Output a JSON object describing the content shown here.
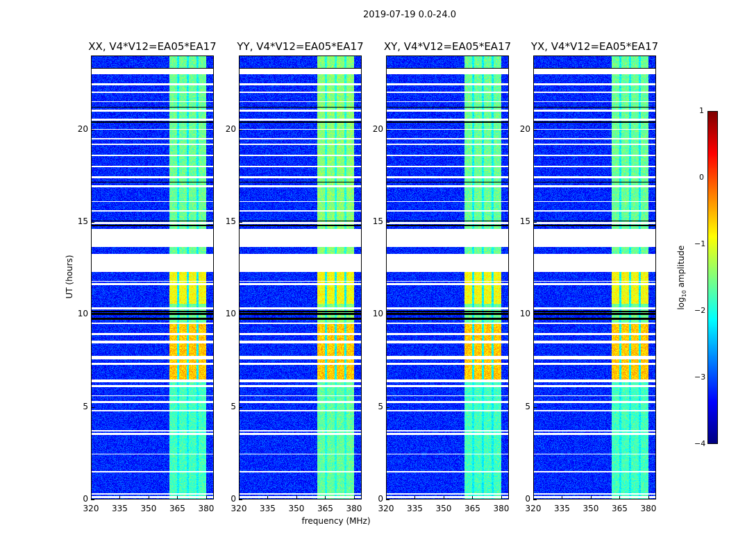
{
  "chart_data": {
    "type": "heatmap",
    "title": "2019-07-19 0.0-24.0",
    "xlabel": "frequency (MHz)",
    "ylabel": "UT (hours)",
    "xlim": [
      320,
      384
    ],
    "ylim": [
      0,
      24
    ],
    "xticks": [
      "320",
      "335",
      "350",
      "365",
      "380"
    ],
    "yticks": [
      "0",
      "5",
      "10",
      "15",
      "20"
    ],
    "panels": [
      {
        "title": "XX, V4*V12=EA05*EA17"
      },
      {
        "title": "YY, V4*V12=EA05*EA17"
      },
      {
        "title": "XY, V4*V12=EA05*EA17"
      },
      {
        "title": "YX, V4*V12=EA05*EA17"
      }
    ],
    "colorbar": {
      "label_prefix": "log",
      "label_sub": "10",
      "label_suffix": " amplitude",
      "range": [
        -4,
        1
      ],
      "ticks": [
        "1",
        "0",
        "−1",
        "−2",
        "−3",
        "−4"
      ],
      "colormap": "jet"
    },
    "background_log_amplitude": -3.2,
    "rfi_band_mhz": [
      360.5,
      380
    ],
    "band_gaps_mhz": [
      365.2,
      370.2,
      375.2
    ],
    "band_levels": [
      {
        "hours": [
          0,
          6.5
        ],
        "log_amplitude": -1.8
      },
      {
        "hours": [
          6.5,
          9.6
        ],
        "log_amplitude": -0.6
      },
      {
        "hours": [
          10.6,
          12.3
        ],
        "log_amplitude": -0.9
      },
      {
        "hours": [
          12.3,
          24
        ],
        "log_amplitude": -1.6
      }
    ],
    "flagged_hours": [
      [
        0.1,
        0.2
      ],
      [
        0.3,
        0.35
      ],
      [
        1.5,
        1.55
      ],
      [
        2.45,
        2.5
      ],
      [
        3.5,
        3.6
      ],
      [
        3.7,
        3.75
      ],
      [
        4.8,
        4.85
      ],
      [
        5.25,
        5.35
      ],
      [
        5.6,
        5.65
      ],
      [
        6.1,
        6.2
      ],
      [
        6.35,
        6.5
      ],
      [
        7.3,
        7.4
      ],
      [
        7.6,
        7.8
      ],
      [
        8.45,
        8.6
      ],
      [
        8.9,
        9.0
      ],
      [
        9.5,
        9.6
      ],
      [
        10.3,
        10.4
      ],
      [
        11.6,
        11.7
      ],
      [
        11.8,
        11.85
      ],
      [
        12.3,
        13.3
      ],
      [
        13.65,
        14.65
      ],
      [
        14.9,
        15.0
      ],
      [
        15.6,
        15.65
      ],
      [
        16.1,
        16.15
      ],
      [
        16.9,
        17.0
      ],
      [
        17.4,
        17.5
      ],
      [
        18.0,
        18.05
      ],
      [
        18.6,
        18.65
      ],
      [
        19.2,
        19.25
      ],
      [
        19.5,
        19.55
      ],
      [
        20.0,
        20.05
      ],
      [
        20.5,
        20.6
      ],
      [
        21.0,
        21.1
      ],
      [
        21.5,
        21.55
      ],
      [
        22.0,
        22.05
      ],
      [
        22.4,
        22.5
      ],
      [
        23.0,
        23.3
      ]
    ],
    "dead_hours": [
      [
        9.75,
        9.85
      ],
      [
        10.0,
        10.1
      ],
      [
        10.15,
        10.2
      ],
      [
        14.8,
        14.88
      ],
      [
        15.05,
        15.1
      ],
      [
        17.15,
        17.2
      ],
      [
        20.4,
        20.45
      ],
      [
        21.2,
        21.25
      ],
      [
        23.3,
        23.35
      ]
    ]
  }
}
